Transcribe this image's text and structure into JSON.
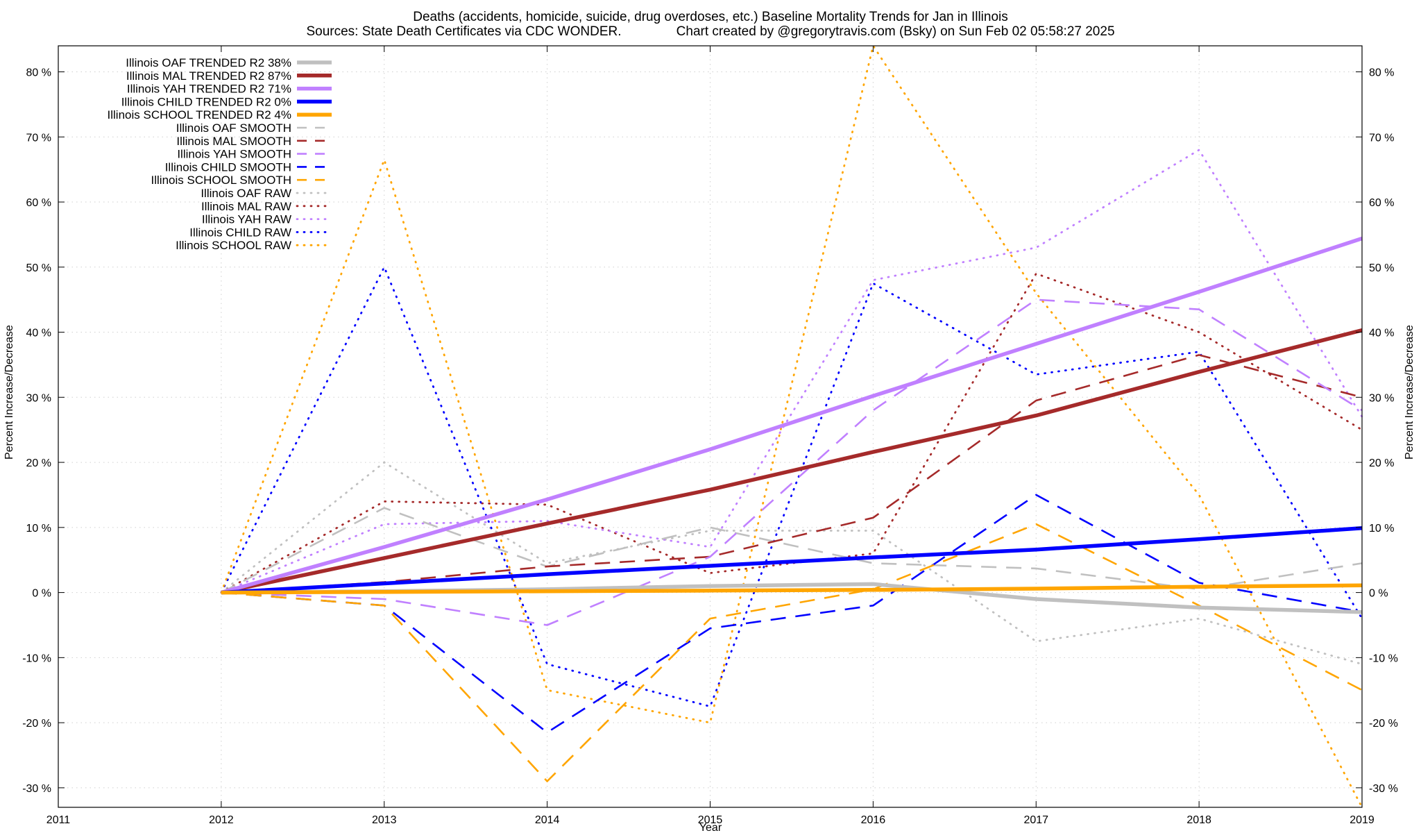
{
  "chart_data": {
    "type": "line",
    "title": "Deaths (accidents, homicide, suicide, drug overdoses, etc.)  Baseline Mortality Trends for Jan in Illinois",
    "subtitle": "Sources: State Death Certificates via CDC WONDER.               Chart created by @gregorytravis.com (Bsky) on Sun Feb 02 05:58:27 2025",
    "xlabel": "Year",
    "ylabel": "Percent Increase/Decrease",
    "ylabel_right": "Percent Increase/Decrease",
    "xlim": [
      2011,
      2019
    ],
    "ylim": [
      -33,
      84
    ],
    "xticks": [
      2011,
      2012,
      2013,
      2014,
      2015,
      2016,
      2017,
      2018,
      2019
    ],
    "yticks": [
      -30,
      -20,
      -10,
      0,
      10,
      20,
      30,
      40,
      50,
      60,
      70,
      80
    ],
    "ytick_suffix": " %",
    "grid": true,
    "legend_position": "top-left",
    "colors": {
      "OAF": "#c0c0c0",
      "MAL": "#a52a2a",
      "YAH": "#c080ff",
      "CHILD": "#0000ff",
      "SCHOOL": "#ffa500"
    },
    "series": [
      {
        "name": "Illinois OAF TRENDED R2  38%",
        "group": "OAF",
        "style": "trended",
        "x": [
          2012,
          2013,
          2014,
          2015,
          2016,
          2017,
          2018,
          2019
        ],
        "values": [
          0,
          0.2,
          0.5,
          1.0,
          1.3,
          -1.0,
          -2.3,
          -3.0
        ]
      },
      {
        "name": "Illinois MAL TRENDED R2  87%",
        "group": "MAL",
        "style": "trended",
        "x": [
          2012,
          2013,
          2014,
          2015,
          2016,
          2017,
          2018,
          2019
        ],
        "values": [
          0,
          5.3,
          10.6,
          15.8,
          21.6,
          27.2,
          33.9,
          40.3
        ]
      },
      {
        "name": "Illinois YAH TRENDED R2  71%",
        "group": "YAH",
        "style": "trended",
        "x": [
          2012,
          2013,
          2014,
          2015,
          2016,
          2017,
          2018,
          2019
        ],
        "values": [
          0,
          7.0,
          14.3,
          22.0,
          30.2,
          38.2,
          46.2,
          54.4
        ]
      },
      {
        "name": "Illinois CHILD TRENDED R2   0%",
        "group": "CHILD",
        "style": "trended",
        "x": [
          2012,
          2013,
          2014,
          2015,
          2016,
          2017,
          2018,
          2019
        ],
        "values": [
          0,
          1.4,
          2.8,
          4.1,
          5.4,
          6.6,
          8.2,
          9.9
        ]
      },
      {
        "name": "Illinois SCHOOL TRENDED R2   4%",
        "group": "SCHOOL",
        "style": "trended",
        "x": [
          2012,
          2013,
          2014,
          2015,
          2016,
          2017,
          2018,
          2019
        ],
        "values": [
          0,
          0.1,
          0.2,
          0.3,
          0.4,
          0.6,
          0.9,
          1.1
        ]
      },
      {
        "name": "Illinois OAF SMOOTH",
        "group": "OAF",
        "style": "smooth",
        "x": [
          2012,
          2013,
          2014,
          2015,
          2016,
          2017,
          2018,
          2019
        ],
        "values": [
          0,
          13.0,
          4.0,
          10.0,
          4.5,
          3.7,
          0.5,
          4.5
        ]
      },
      {
        "name": "Illinois MAL SMOOTH",
        "group": "MAL",
        "style": "smooth",
        "x": [
          2012,
          2013,
          2014,
          2015,
          2016,
          2017,
          2018,
          2019
        ],
        "values": [
          0,
          1.6,
          4.0,
          5.5,
          11.5,
          29.5,
          36.5,
          30.0
        ]
      },
      {
        "name": "Illinois YAH SMOOTH",
        "group": "YAH",
        "style": "smooth",
        "x": [
          2012,
          2013,
          2014,
          2015,
          2016,
          2017,
          2018,
          2019
        ],
        "values": [
          0,
          -1.0,
          -5.0,
          5.5,
          28.0,
          45.0,
          43.5,
          28.0
        ]
      },
      {
        "name": "Illinois CHILD SMOOTH",
        "group": "CHILD",
        "style": "smooth",
        "x": [
          2012,
          2013,
          2014,
          2015,
          2016,
          2017,
          2018,
          2019
        ],
        "values": [
          0,
          -2.0,
          -21.5,
          -5.5,
          -2.0,
          15.0,
          1.5,
          -3.0
        ]
      },
      {
        "name": "Illinois SCHOOL SMOOTH",
        "group": "SCHOOL",
        "style": "smooth",
        "x": [
          2012,
          2013,
          2014,
          2015,
          2016,
          2017,
          2018,
          2019
        ],
        "values": [
          0,
          -2.0,
          -29.0,
          -4.0,
          0.5,
          10.5,
          -2.0,
          -15.0
        ]
      },
      {
        "name": "Illinois OAF RAW",
        "group": "OAF",
        "style": "raw",
        "x": [
          2012,
          2013,
          2014,
          2015,
          2016,
          2017,
          2018,
          2019
        ],
        "values": [
          0,
          20.0,
          4.5,
          9.5,
          9.5,
          -7.5,
          -4.0,
          -11.0
        ]
      },
      {
        "name": "Illinois MAL RAW",
        "group": "MAL",
        "style": "raw",
        "x": [
          2012,
          2013,
          2014,
          2015,
          2016,
          2017,
          2018,
          2019
        ],
        "values": [
          0,
          14.0,
          13.5,
          3.0,
          6.0,
          49.0,
          40.0,
          25.0
        ]
      },
      {
        "name": "Illinois YAH RAW",
        "group": "YAH",
        "style": "raw",
        "x": [
          2012,
          2013,
          2014,
          2015,
          2016,
          2017,
          2018,
          2019
        ],
        "values": [
          0,
          10.5,
          11.0,
          7.0,
          48.0,
          53.0,
          68.0,
          27.0
        ]
      },
      {
        "name": "Illinois CHILD RAW",
        "group": "CHILD",
        "style": "raw",
        "x": [
          2012,
          2013,
          2014,
          2015,
          2016,
          2017,
          2018,
          2019
        ],
        "values": [
          0,
          50.0,
          -11.0,
          -17.5,
          47.5,
          33.5,
          37.0,
          -4.0
        ]
      },
      {
        "name": "Illinois SCHOOL RAW",
        "group": "SCHOOL",
        "style": "raw",
        "x": [
          2012,
          2013,
          2014,
          2015,
          2016,
          2017,
          2018,
          2019
        ],
        "values": [
          0,
          66.5,
          -15.0,
          -20.0,
          84.0,
          46.0,
          15.0,
          -33.0
        ]
      }
    ]
  }
}
